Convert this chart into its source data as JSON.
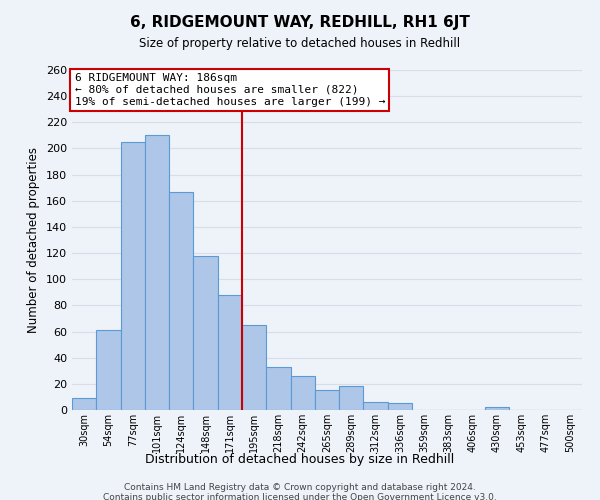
{
  "title": "6, RIDGEMOUNT WAY, REDHILL, RH1 6JT",
  "subtitle": "Size of property relative to detached houses in Redhill",
  "xlabel": "Distribution of detached houses by size in Redhill",
  "ylabel": "Number of detached properties",
  "bin_labels": [
    "30sqm",
    "54sqm",
    "77sqm",
    "101sqm",
    "124sqm",
    "148sqm",
    "171sqm",
    "195sqm",
    "218sqm",
    "242sqm",
    "265sqm",
    "289sqm",
    "312sqm",
    "336sqm",
    "359sqm",
    "383sqm",
    "406sqm",
    "430sqm",
    "453sqm",
    "477sqm",
    "500sqm"
  ],
  "bar_values": [
    9,
    61,
    205,
    210,
    167,
    118,
    88,
    65,
    33,
    26,
    15,
    18,
    6,
    5,
    0,
    0,
    0,
    2,
    0,
    0,
    0
  ],
  "bar_color": "#aec6e8",
  "bar_edge_color": "#5b9bd5",
  "property_line_bin": 7,
  "property_line_color": "#cc0000",
  "annotation_title": "6 RIDGEMOUNT WAY: 186sqm",
  "annotation_line1": "← 80% of detached houses are smaller (822)",
  "annotation_line2": "19% of semi-detached houses are larger (199) →",
  "annotation_box_color": "#ffffff",
  "annotation_box_edge": "#cc0000",
  "footer_line1": "Contains HM Land Registry data © Crown copyright and database right 2024.",
  "footer_line2": "Contains public sector information licensed under the Open Government Licence v3.0.",
  "ylim": [
    0,
    260
  ],
  "yticks": [
    0,
    20,
    40,
    60,
    80,
    100,
    120,
    140,
    160,
    180,
    200,
    220,
    240,
    260
  ],
  "background_color": "#eef2f9",
  "grid_color": "#d8dde8",
  "figsize": [
    6.0,
    5.0
  ],
  "dpi": 100
}
